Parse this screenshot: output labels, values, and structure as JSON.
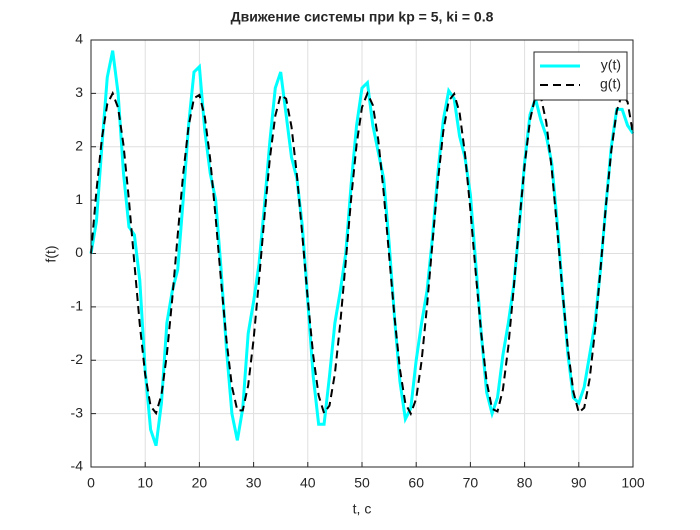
{
  "chart_data": {
    "type": "line",
    "title": "Движение системы при kp = 5, ki = 0.8",
    "x_label": "t, c",
    "y_label": "f(t)",
    "x": [
      0,
      1,
      2,
      3,
      4,
      5,
      6,
      7,
      8,
      9,
      10,
      11,
      12,
      13,
      14,
      15,
      16,
      17,
      18,
      19,
      20,
      21,
      22,
      23,
      24,
      25,
      26,
      27,
      28,
      29,
      30,
      31,
      32,
      33,
      34,
      35,
      36,
      37,
      38,
      39,
      40,
      41,
      42,
      43,
      44,
      45,
      46,
      47,
      48,
      49,
      50,
      51,
      52,
      53,
      54,
      55,
      56,
      57,
      58,
      59,
      60,
      61,
      62,
      63,
      64,
      65,
      66,
      67,
      68,
      69,
      70,
      71,
      72,
      73,
      74,
      75,
      76,
      77,
      78,
      79,
      80,
      81,
      82,
      83,
      84,
      85,
      86,
      87,
      88,
      89,
      90,
      91,
      92,
      93,
      94,
      95,
      96,
      97,
      98,
      99,
      100
    ],
    "series": [
      {
        "name": "y(t)",
        "color": "#00ffff",
        "line_style": "solid",
        "values": [
          0,
          0.6,
          2.0,
          3.3,
          3.8,
          3.0,
          1.5,
          0.5,
          0.35,
          -0.5,
          -2.2,
          -3.3,
          -3.6,
          -2.8,
          -1.3,
          -0.7,
          -0.3,
          1.0,
          2.4,
          3.4,
          3.5,
          2.3,
          1.5,
          1.0,
          -0.3,
          -1.8,
          -3.0,
          -3.5,
          -2.9,
          -1.5,
          -0.9,
          -0.2,
          0.9,
          2.1,
          3.1,
          3.4,
          2.6,
          1.8,
          1.4,
          0.5,
          -0.9,
          -2.3,
          -3.2,
          -3.2,
          -2.3,
          -1.3,
          -0.7,
          0.0,
          1.3,
          2.4,
          3.1,
          3.2,
          2.4,
          1.9,
          1.4,
          0.2,
          -1.2,
          -2.4,
          -3.1,
          -2.9,
          -2.0,
          -1.3,
          -0.7,
          0.3,
          1.5,
          2.5,
          3.05,
          2.9,
          2.2,
          1.8,
          1.1,
          -0.2,
          -1.5,
          -2.6,
          -3.0,
          -2.7,
          -1.9,
          -1.3,
          -0.6,
          0.5,
          1.7,
          2.6,
          2.9,
          2.5,
          2.2,
          1.7,
          0.6,
          -0.7,
          -1.9,
          -2.7,
          -2.8,
          -2.5,
          -1.9,
          -1.3,
          -0.3,
          0.9,
          2.0,
          2.7,
          2.7,
          2.4,
          2.25
        ]
      },
      {
        "name": "g(t)",
        "color": "#000000",
        "line_style": "dashed",
        "values": [
          0,
          1.17,
          2.15,
          2.8,
          3.0,
          2.73,
          2.03,
          1.0,
          -0.18,
          -1.33,
          -2.27,
          -2.86,
          -2.99,
          -2.65,
          -1.89,
          -0.84,
          0.35,
          1.48,
          2.38,
          2.91,
          2.97,
          2.56,
          1.76,
          0.67,
          -0.52,
          -1.63,
          -2.49,
          -2.94,
          -2.94,
          -2.47,
          -1.61,
          -0.5,
          0.69,
          1.78,
          2.58,
          2.97,
          2.9,
          2.37,
          1.46,
          0.33,
          -0.86,
          -1.91,
          -2.66,
          -2.99,
          -2.85,
          -2.25,
          -1.3,
          -0.15,
          1.03,
          2.04,
          2.74,
          3.0,
          2.78,
          2.13,
          1.14,
          -0.03,
          -1.19,
          -2.17,
          -2.81,
          -3.0,
          -2.72,
          -2.01,
          -0.98,
          0.2,
          1.35,
          2.29,
          2.86,
          2.99,
          2.64,
          1.87,
          0.81,
          -0.38,
          -1.5,
          -2.4,
          -2.91,
          -2.96,
          -2.55,
          -1.74,
          -0.64,
          0.55,
          1.65,
          2.5,
          2.95,
          2.93,
          2.46,
          1.59,
          0.47,
          -0.72,
          -1.8,
          -2.59,
          -2.98,
          -2.89,
          -2.35,
          -1.44,
          -0.3,
          0.89,
          1.93,
          2.67,
          2.99,
          2.84,
          2.24
        ]
      }
    ],
    "xlim": [
      0,
      100
    ],
    "xticks": [
      0,
      10,
      20,
      30,
      40,
      50,
      60,
      70,
      80,
      90,
      100
    ],
    "ylim": [
      -4,
      4
    ],
    "yticks": [
      -4,
      -3,
      -2,
      -1,
      0,
      1,
      2,
      3,
      4
    ],
    "grid": true,
    "legend": "northeast"
  }
}
